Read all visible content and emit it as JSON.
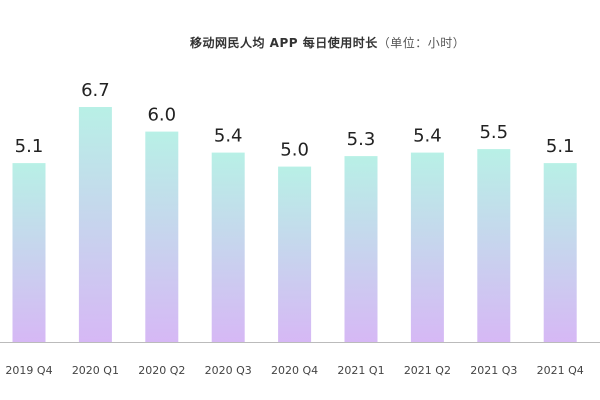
{
  "chart_data": {
    "type": "bar",
    "title": "移动网民人均 APP 每日使用时长",
    "title_unit": "（单位：小时）",
    "categories": [
      "2019 Q4",
      "2020 Q1",
      "2020 Q2",
      "2020 Q3",
      "2020 Q4",
      "2021 Q1",
      "2021 Q2",
      "2021 Q3",
      "2021 Q4"
    ],
    "values": [
      5.1,
      6.7,
      6.0,
      5.4,
      5.0,
      5.3,
      5.4,
      5.5,
      5.1
    ],
    "value_labels": [
      "5.1",
      "6.7",
      "6.0",
      "5.4",
      "5.0",
      "5.3",
      "5.4",
      "5.5",
      "5.1"
    ],
    "xlabel": "",
    "ylabel": "",
    "ylim": [
      0,
      6.7
    ],
    "grid": false,
    "bar_gradient_top": "#b8f0e6",
    "bar_gradient_bottom": "#d6b8f5",
    "axis_color": "#bbbbbb"
  }
}
